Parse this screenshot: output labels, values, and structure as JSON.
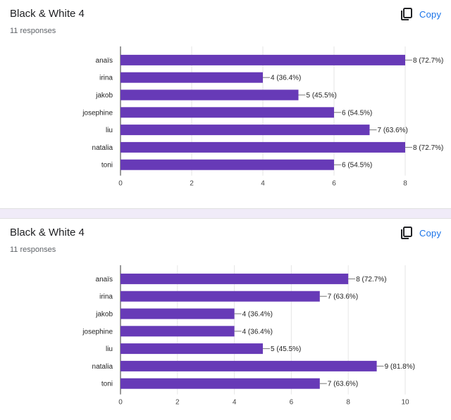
{
  "cards": [
    {
      "title": "Black & White 4",
      "responses": "11 responses",
      "copy_label": "Copy",
      "copy_icon": "copy-icon"
    },
    {
      "title": "Black & White 4",
      "responses": "11 responses",
      "copy_label": "Copy",
      "copy_icon": "copy-icon"
    }
  ],
  "colors": {
    "bar": "#673ab7",
    "accent": "#1a73e8",
    "separator": "#f0ebf8"
  },
  "chart_data": [
    {
      "type": "bar",
      "orientation": "horizontal",
      "categories": [
        "anaïs",
        "irina",
        "jakob",
        "josephine",
        "liu",
        "natalia",
        "toni"
      ],
      "values": [
        8,
        4,
        5,
        6,
        7,
        8,
        6
      ],
      "value_labels": [
        "8 (72.7%)",
        "4 (36.4%)",
        "5 (45.5%)",
        "6 (54.5%)",
        "7 (63.6%)",
        "8 (72.7%)",
        "6 (54.5%)"
      ],
      "xlim": [
        0,
        8
      ],
      "xticks": [
        0,
        2,
        4,
        6,
        8
      ],
      "grid": true
    },
    {
      "type": "bar",
      "orientation": "horizontal",
      "categories": [
        "anaïs",
        "irina",
        "jakob",
        "josephine",
        "liu",
        "natalia",
        "toni"
      ],
      "values": [
        8,
        7,
        4,
        4,
        5,
        9,
        7
      ],
      "value_labels": [
        "8 (72.7%)",
        "7 (63.6%)",
        "4 (36.4%)",
        "4 (36.4%)",
        "5 (45.5%)",
        "9 (81.8%)",
        "7 (63.6%)"
      ],
      "xlim": [
        0,
        10
      ],
      "xticks": [
        0,
        2,
        4,
        6,
        8,
        10
      ],
      "grid": true
    }
  ]
}
